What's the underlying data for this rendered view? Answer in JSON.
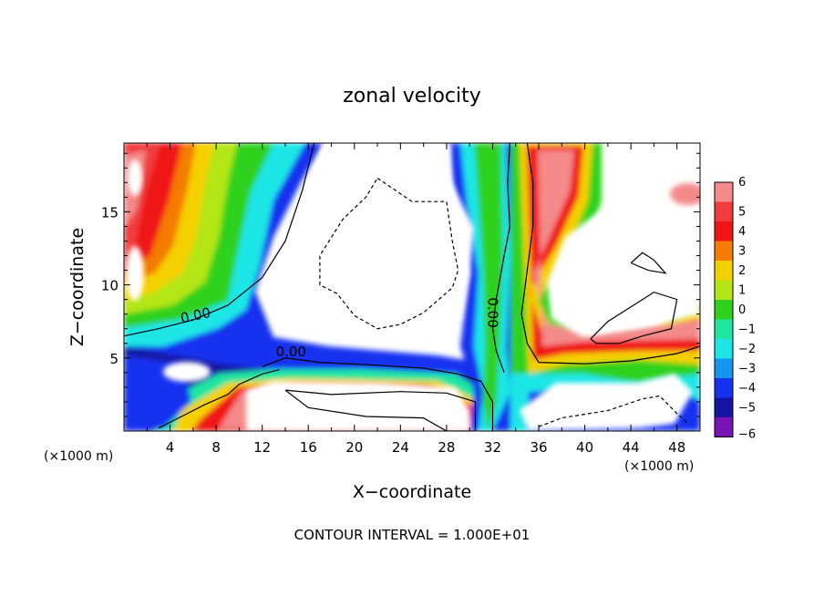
{
  "chart_data": {
    "type": "heatmap",
    "title": "zonal velocity",
    "xlabel": "X−coordinate",
    "ylabel": "Z−coordinate",
    "x_unit_label": "(×1000 m)",
    "z_unit_label": "(×1000 m)",
    "footer": "CONTOUR INTERVAL = 1.000E+01",
    "xlim": [
      0,
      50
    ],
    "ylim": [
      0,
      19.7
    ],
    "x_ticks": [
      4,
      8,
      12,
      16,
      20,
      24,
      28,
      32,
      36,
      40,
      44,
      48
    ],
    "x_tick_labels": [
      "4",
      "8",
      "12",
      "16",
      "20",
      "24",
      "28",
      "32",
      "36",
      "40",
      "44",
      "48"
    ],
    "y_ticks": [
      5,
      10,
      15
    ],
    "y_tick_labels": [
      "5",
      "10",
      "15"
    ],
    "colorbar": {
      "values": [
        6,
        5,
        4,
        3,
        2,
        1,
        0,
        -1,
        -2,
        -3,
        -4,
        -5,
        -6
      ],
      "labels": [
        "6",
        "5",
        "4",
        "3",
        "2",
        "1",
        "0",
        "−1",
        "−2",
        "−3",
        "−4",
        "−5",
        "−6"
      ],
      "colors": [
        "#f48a8a",
        "#f03c3c",
        "#f01414",
        "#f57c00",
        "#f5d000",
        "#b4e614",
        "#2ed21e",
        "#1ee6a0",
        "#1ee6e6",
        "#1496f0",
        "#1432f0",
        "#1414a0",
        "#7814b4"
      ]
    },
    "contour_labels": [
      {
        "text": "0.00",
        "x": 6.3,
        "z": 7.6,
        "rotate": -12
      },
      {
        "text": "0.00",
        "x": 14.5,
        "z": 5.1,
        "rotate": 0
      },
      {
        "text": "0.00",
        "x": 31.6,
        "z": 8.1,
        "rotate": 90
      }
    ],
    "contours": [
      {
        "name": "zero-left",
        "style": "solid",
        "points": [
          [
            0,
            6.5
          ],
          [
            3,
            7
          ],
          [
            6,
            7.6
          ],
          [
            9,
            8.6
          ],
          [
            12,
            10.5
          ],
          [
            14,
            13
          ],
          [
            15.5,
            16.5
          ],
          [
            16.5,
            19.7
          ]
        ]
      },
      {
        "name": "zero-lower",
        "style": "solid",
        "points": [
          [
            12,
            4.4
          ],
          [
            14,
            5
          ],
          [
            17,
            4.7
          ],
          [
            22,
            4.5
          ],
          [
            26,
            4.3
          ],
          [
            29,
            3.9
          ],
          [
            31,
            3.4
          ],
          [
            32,
            2
          ],
          [
            32,
            0
          ]
        ]
      },
      {
        "name": "zero-bottom",
        "style": "solid",
        "points": [
          [
            3,
            0.2
          ],
          [
            5,
            1
          ],
          [
            7,
            1.8
          ],
          [
            9,
            2.5
          ],
          [
            10,
            3.2
          ],
          [
            12,
            3.9
          ],
          [
            13.5,
            4.2
          ]
        ]
      },
      {
        "name": "zero-vertical",
        "style": "solid",
        "points": [
          [
            33.5,
            19.7
          ],
          [
            33.3,
            17
          ],
          [
            33.5,
            14
          ],
          [
            33,
            12
          ],
          [
            32.3,
            9
          ],
          [
            32,
            7
          ],
          [
            32.3,
            5.5
          ],
          [
            33,
            4
          ]
        ]
      },
      {
        "name": "zero-right",
        "style": "solid",
        "points": [
          [
            35,
            19.7
          ],
          [
            35.5,
            17
          ],
          [
            35.5,
            14
          ],
          [
            35,
            11
          ],
          [
            34.5,
            8
          ],
          [
            35,
            6
          ],
          [
            36,
            4.7
          ],
          [
            40,
            4.6
          ],
          [
            44,
            4.8
          ],
          [
            48,
            5.3
          ],
          [
            50,
            5.8
          ]
        ]
      },
      {
        "name": "inner-loop",
        "style": "solid",
        "points": [
          [
            14,
            2.8
          ],
          [
            18,
            2.5
          ],
          [
            24,
            2.7
          ],
          [
            28,
            2.6
          ],
          [
            30.5,
            2
          ],
          [
            30.5,
            0
          ],
          [
            28,
            0
          ],
          [
            26,
            0.9
          ],
          [
            21,
            1
          ],
          [
            16,
            1.6
          ],
          [
            14,
            2.8
          ]
        ]
      },
      {
        "name": "right-loop",
        "style": "solid",
        "points": [
          [
            40.5,
            6.3
          ],
          [
            42,
            7.5
          ],
          [
            44,
            8.5
          ],
          [
            46,
            9.5
          ],
          [
            48,
            9
          ],
          [
            47.5,
            7
          ],
          [
            45,
            6.5
          ],
          [
            43,
            6
          ],
          [
            41,
            6
          ],
          [
            40.5,
            6.3
          ]
        ]
      },
      {
        "name": "small-loop",
        "style": "solid",
        "points": [
          [
            44,
            11.5
          ],
          [
            45.5,
            11
          ],
          [
            47,
            10.8
          ],
          [
            46,
            11.7
          ],
          [
            45,
            12.2
          ],
          [
            44,
            11.5
          ]
        ]
      },
      {
        "name": "negative-loop",
        "style": "dashed",
        "points": [
          [
            22,
            17.3
          ],
          [
            25,
            15.7
          ],
          [
            28,
            15.7
          ],
          [
            28.5,
            13
          ],
          [
            29,
            11
          ],
          [
            28.5,
            9.8
          ],
          [
            26,
            8.1
          ],
          [
            24,
            7.3
          ],
          [
            22,
            7
          ],
          [
            20,
            7.9
          ],
          [
            18.5,
            9.4
          ],
          [
            17,
            10
          ],
          [
            17,
            12
          ],
          [
            19,
            14.5
          ],
          [
            21,
            16
          ],
          [
            22,
            17.3
          ]
        ]
      },
      {
        "name": "negative-bottom",
        "style": "dashed",
        "points": [
          [
            36,
            0.3
          ],
          [
            38,
            0.9
          ],
          [
            42,
            1.4
          ],
          [
            45,
            2.2
          ],
          [
            46.5,
            2.4
          ],
          [
            48,
            1.2
          ],
          [
            49,
            0.5
          ]
        ]
      }
    ]
  }
}
